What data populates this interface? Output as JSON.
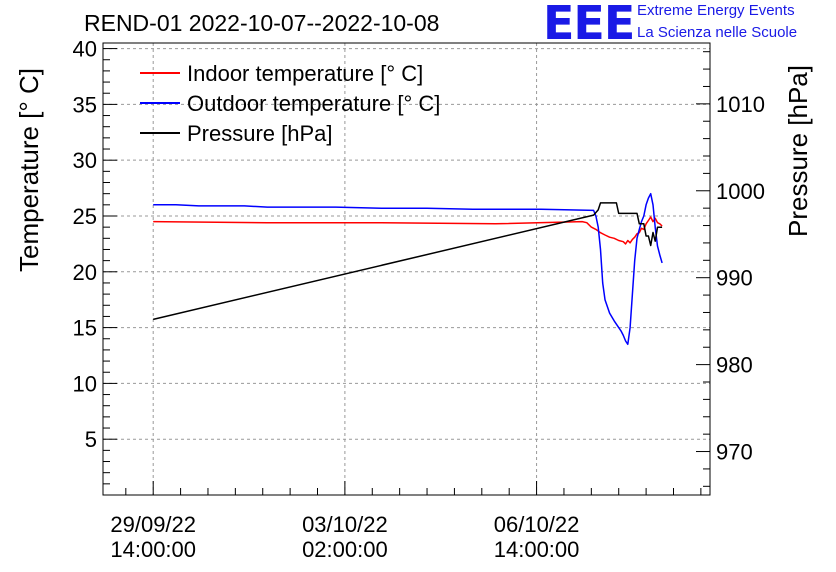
{
  "title": "REND-01 2022-10-07--2022-10-08",
  "logo": {
    "letters": "EEE",
    "line1": "Extreme Energy Events",
    "line2": "La Scienza nelle Scuole",
    "color": "#1a1ae6"
  },
  "chart_data": {
    "type": "line",
    "y_left_label": "Temperature [° C]",
    "y_right_label": "Pressure [hPa]",
    "x_ticks": [
      {
        "t": 0,
        "line1": "29/09/22",
        "line2": "14:00:00"
      },
      {
        "t": 84,
        "line1": "03/10/22",
        "line2": "02:00:00"
      },
      {
        "t": 168,
        "line1": "06/10/22",
        "line2": "14:00:00"
      }
    ],
    "xlim": [
      -22,
      244
    ],
    "ylim_left": [
      0,
      40.5
    ],
    "y_left_ticks": [
      5,
      10,
      15,
      20,
      25,
      30,
      35,
      40
    ],
    "ylim_right": [
      965,
      1017
    ],
    "y_right_ticks": [
      970,
      980,
      990,
      1000,
      1010
    ],
    "legend": [
      {
        "label": "Indoor temperature [° C]",
        "color": "#ff0000"
      },
      {
        "label": "Outdoor temperature [° C]",
        "color": "#0000ff"
      },
      {
        "label": "Pressure [hPa]",
        "color": "#000000"
      }
    ],
    "series": [
      {
        "name": "Indoor temperature [° C]",
        "color": "#ff0000",
        "axis": "left",
        "points": [
          [
            0,
            24.5
          ],
          [
            50,
            24.4
          ],
          [
            100,
            24.4
          ],
          [
            150,
            24.3
          ],
          [
            188,
            24.5
          ],
          [
            190,
            24.4
          ],
          [
            192,
            24.0
          ],
          [
            194,
            23.8
          ],
          [
            196,
            23.5
          ],
          [
            198,
            23.3
          ],
          [
            200,
            23.1
          ],
          [
            202,
            23.0
          ],
          [
            204,
            22.8
          ],
          [
            206,
            22.7
          ],
          [
            207,
            22.5
          ],
          [
            208,
            22.8
          ],
          [
            209,
            22.6
          ],
          [
            210,
            22.9
          ],
          [
            211,
            23.1
          ],
          [
            212,
            23.4
          ],
          [
            213,
            23.5
          ],
          [
            214,
            23.9
          ],
          [
            215,
            23.8
          ],
          [
            216,
            24.3
          ],
          [
            217,
            24.6
          ],
          [
            218,
            24.9
          ],
          [
            219,
            24.5
          ],
          [
            220,
            24.8
          ],
          [
            221,
            24.4
          ],
          [
            222,
            24.3
          ],
          [
            223,
            24.1
          ]
        ]
      },
      {
        "name": "Outdoor temperature [° C]",
        "color": "#0000ff",
        "axis": "left",
        "points": [
          [
            0,
            26.0
          ],
          [
            10,
            26.0
          ],
          [
            20,
            25.9
          ],
          [
            40,
            25.9
          ],
          [
            50,
            25.8
          ],
          [
            80,
            25.8
          ],
          [
            100,
            25.7
          ],
          [
            120,
            25.7
          ],
          [
            140,
            25.6
          ],
          [
            170,
            25.6
          ],
          [
            193,
            25.5
          ],
          [
            194,
            25.0
          ],
          [
            195,
            24.0
          ],
          [
            196,
            22.0
          ],
          [
            197,
            19.0
          ],
          [
            198,
            17.5
          ],
          [
            200,
            16.3
          ],
          [
            202,
            15.6
          ],
          [
            204,
            15.0
          ],
          [
            205,
            14.7
          ],
          [
            206,
            14.3
          ],
          [
            207,
            13.8
          ],
          [
            208,
            13.5
          ],
          [
            209,
            15.0
          ],
          [
            210,
            18.0
          ],
          [
            211,
            21.0
          ],
          [
            212,
            23.0
          ],
          [
            213,
            23.8
          ],
          [
            214,
            24.5
          ],
          [
            215,
            25.0
          ],
          [
            216,
            26.0
          ],
          [
            217,
            26.6
          ],
          [
            218,
            27.0
          ],
          [
            219,
            26.0
          ],
          [
            220,
            24.0
          ],
          [
            221,
            22.3
          ],
          [
            222,
            21.5
          ],
          [
            223,
            20.8
          ]
        ]
      },
      {
        "name": "Pressure [hPa]",
        "color": "#000000",
        "axis": "right",
        "points": [
          [
            0,
            985.2
          ],
          [
            193,
            997.2
          ],
          [
            195,
            997.8
          ],
          [
            196,
            998.6
          ],
          [
            203,
            998.6
          ],
          [
            204,
            997.4
          ],
          [
            212,
            997.4
          ],
          [
            213,
            996.2
          ],
          [
            215,
            996.2
          ],
          [
            216,
            994.8
          ],
          [
            217,
            994.8
          ],
          [
            218,
            993.7
          ],
          [
            219,
            995.2
          ],
          [
            220,
            994.2
          ],
          [
            221,
            995.8
          ],
          [
            223,
            995.8
          ]
        ]
      }
    ]
  }
}
